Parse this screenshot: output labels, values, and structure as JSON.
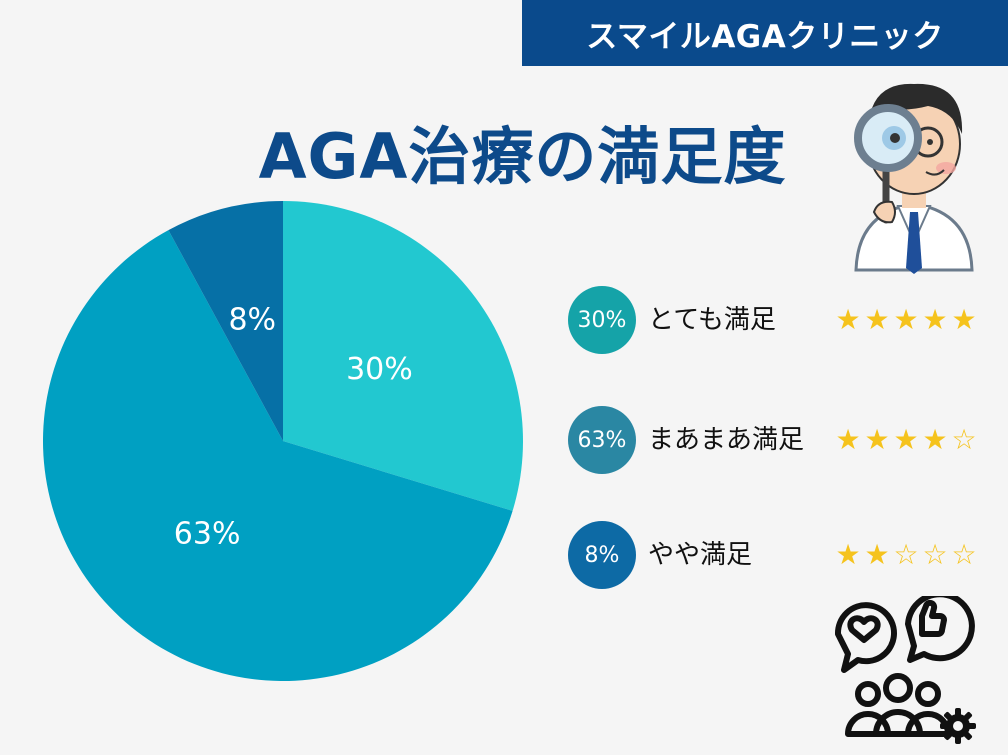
{
  "header": {
    "brand": "スマイルAGAクリニック"
  },
  "title": "AGA治療の満足度",
  "chart_data": {
    "type": "pie",
    "title": "AGA治療の満足度",
    "slices": [
      {
        "label": "とても満足",
        "value": 30,
        "display": "30%",
        "color": "#22c8d0",
        "badge_color": "#15a3a8",
        "stars": 5
      },
      {
        "label": "まあまあ満足",
        "value": 63,
        "display": "63%",
        "color": "#00a0c2",
        "badge_color": "#2a87a3",
        "stars": 4
      },
      {
        "label": "やや満足",
        "value": 8,
        "display": "8%",
        "color": "#0670a6",
        "badge_color": "#0d6aa5",
        "stars": 2
      }
    ],
    "legend_position": "right",
    "star_max": 5
  },
  "icons": {
    "doctor": "doctor-magnifier-icon",
    "feedback": "feedback-people-icon"
  }
}
